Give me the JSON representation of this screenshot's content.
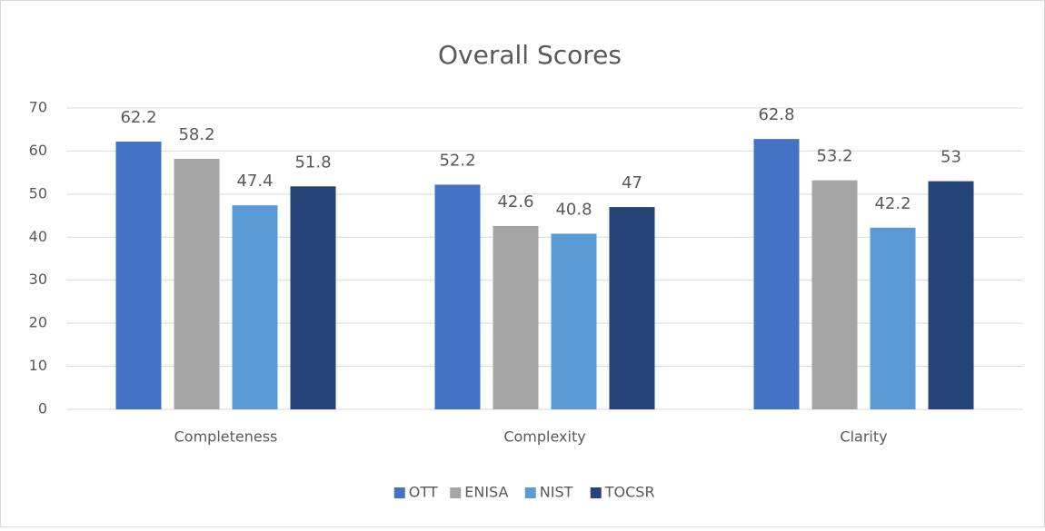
{
  "chart_data": {
    "type": "bar",
    "title": "Overall Scores",
    "categories": [
      "Completeness",
      "Complexity",
      "Clarity"
    ],
    "series": [
      {
        "name": "OTT",
        "color": "#4472c4",
        "values": [
          62.2,
          52.2,
          62.8
        ]
      },
      {
        "name": "ENISA",
        "color": "#a5a5a5",
        "values": [
          58.2,
          42.6,
          53.2
        ]
      },
      {
        "name": "NIST",
        "color": "#5b9bd5",
        "values": [
          47.4,
          40.8,
          42.2
        ]
      },
      {
        "name": "TOCSR",
        "color": "#264478",
        "values": [
          51.8,
          47,
          53
        ]
      }
    ],
    "ylim": [
      0,
      70
    ],
    "yticks": [
      0,
      10,
      20,
      30,
      40,
      50,
      60,
      70
    ],
    "grid": true,
    "legend": "bottom"
  }
}
